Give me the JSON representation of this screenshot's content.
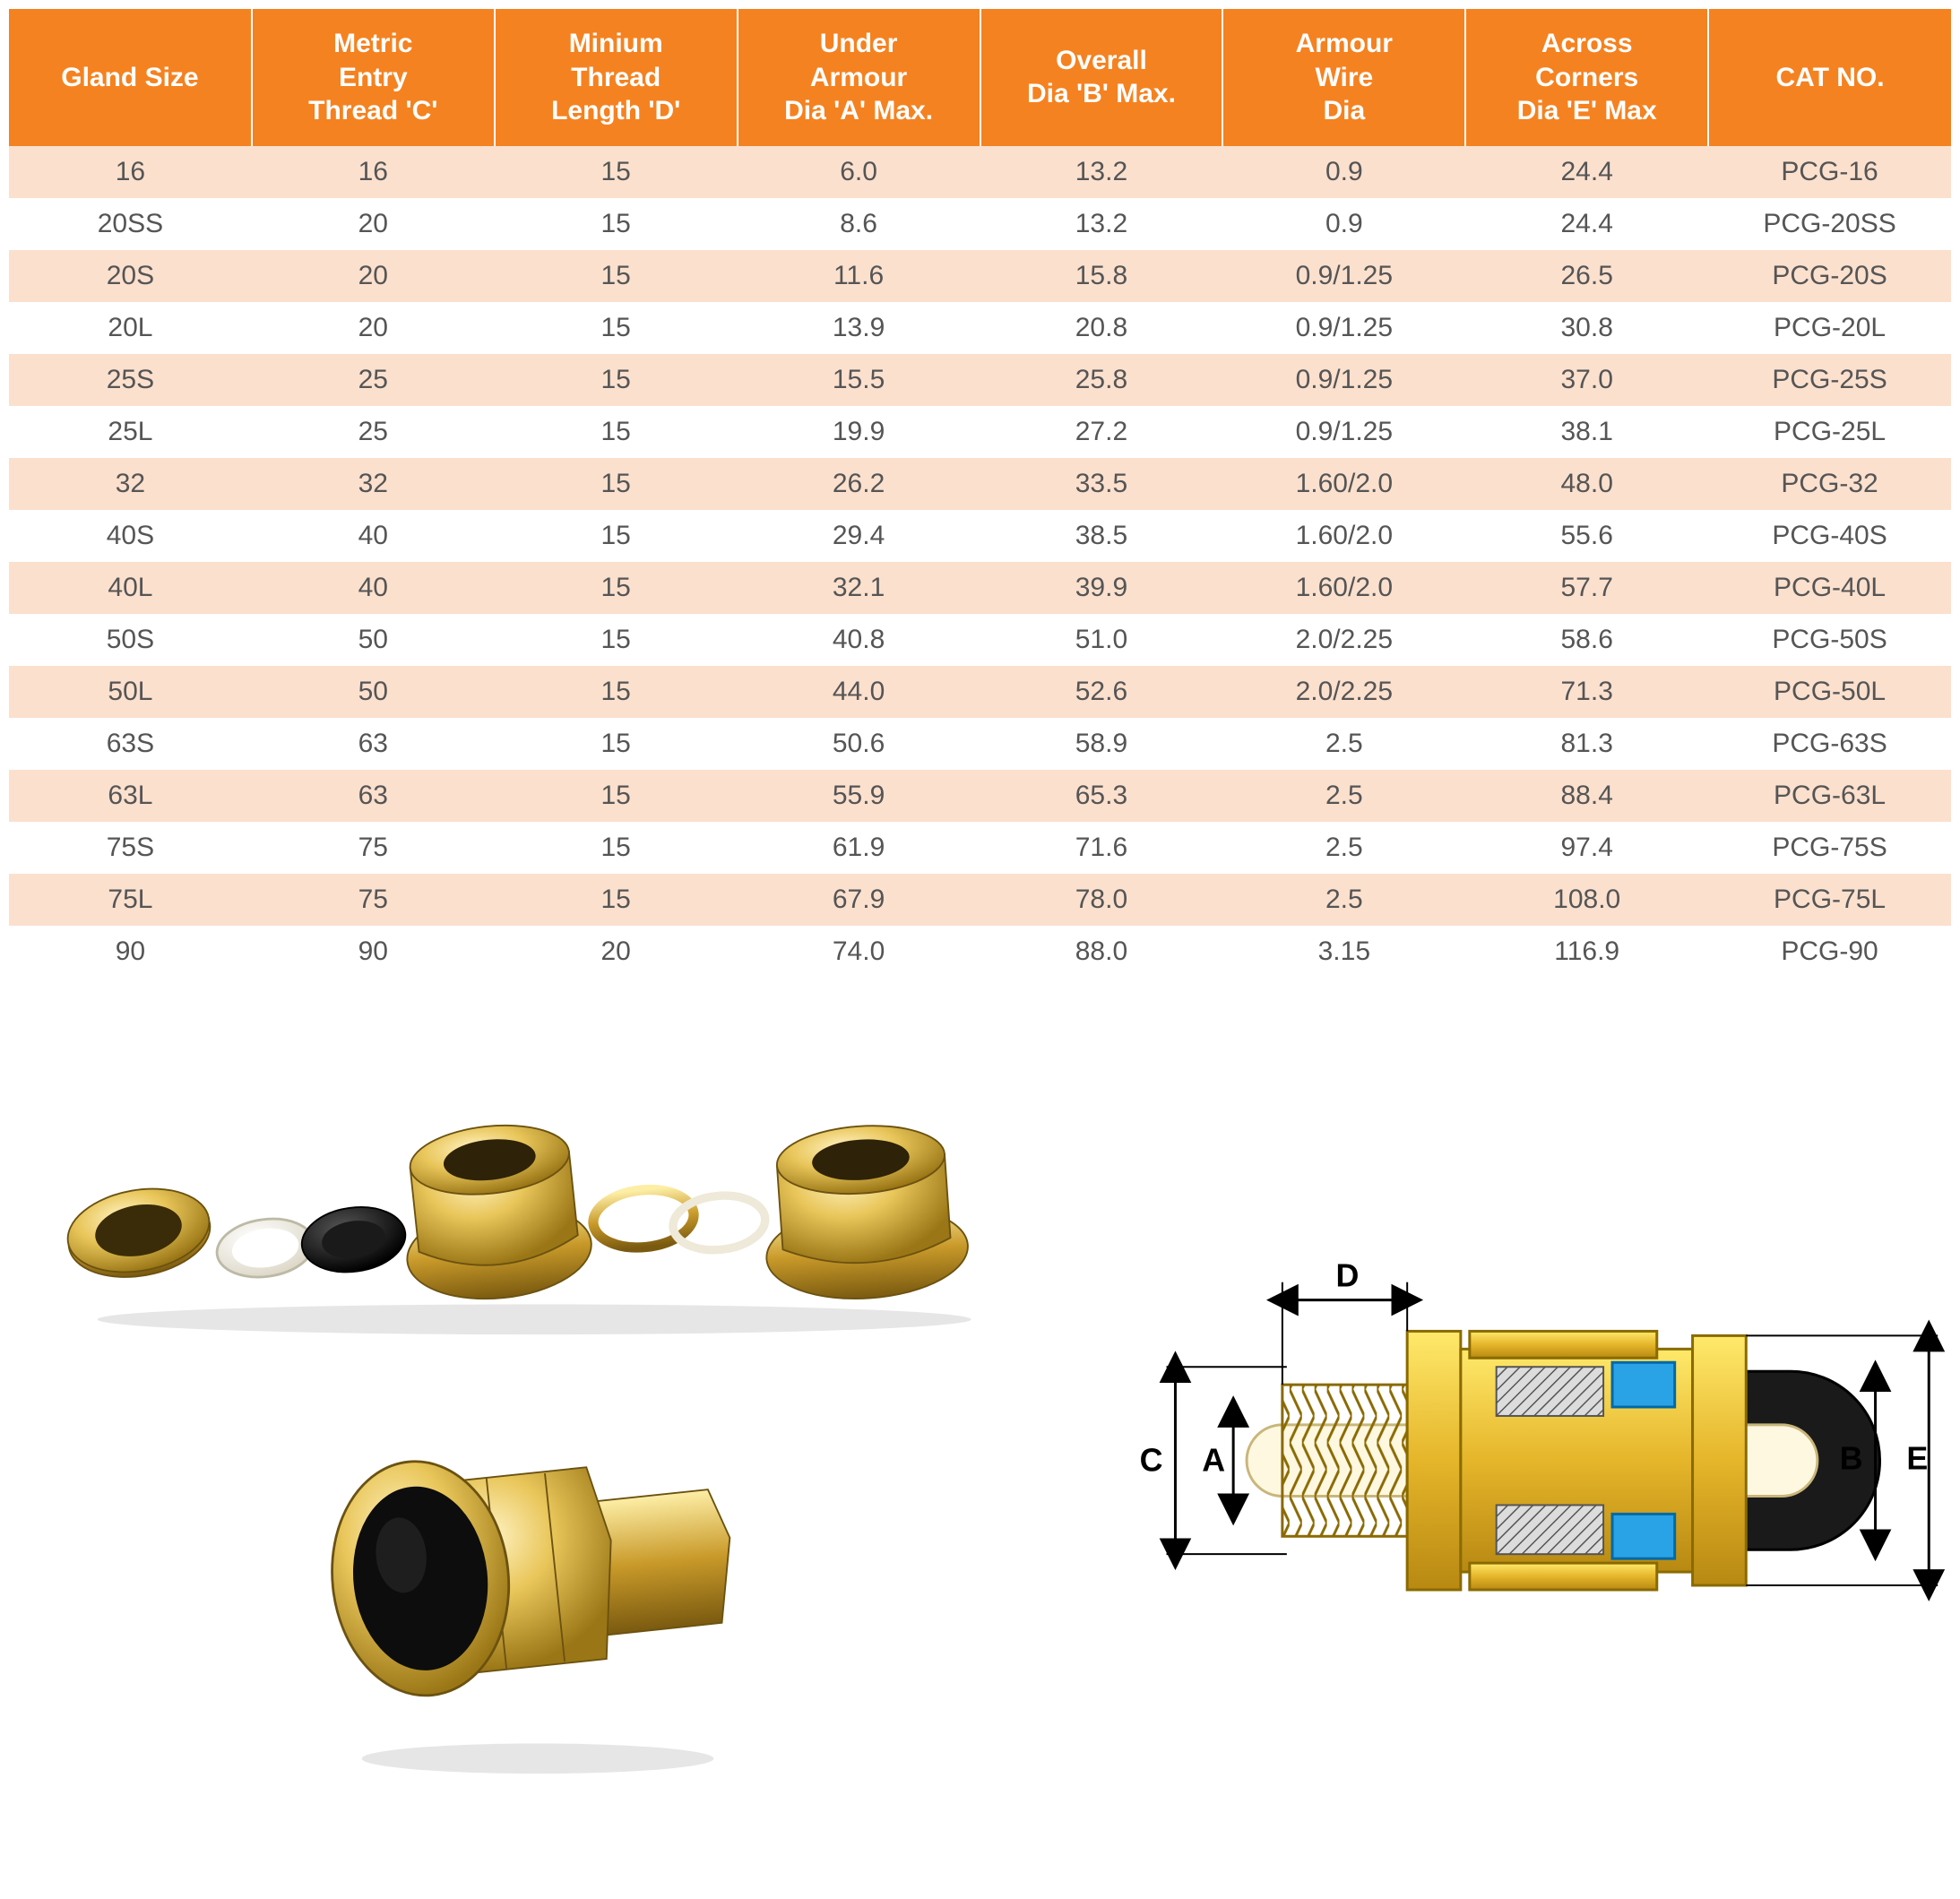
{
  "table": {
    "header_bg": "#f58220",
    "header_fg": "#ffffff",
    "row_odd_bg": "#fbe0ce",
    "row_even_bg": "#ffffff",
    "cell_fg": "#555555",
    "header_fontsize": 30,
    "cell_fontsize": 30,
    "columns": [
      "Gland Size",
      "Metric\nEntry\nThread 'C'",
      "Minium\nThread\nLength 'D'",
      "Under\nArmour\nDia 'A' Max.",
      "Overall\nDia 'B' Max.",
      "Armour\nWire\nDia",
      "Across\nCorners\nDia 'E' Max",
      "CAT NO."
    ],
    "rows": [
      [
        "16",
        "16",
        "15",
        "6.0",
        "13.2",
        "0.9",
        "24.4",
        "PCG-16"
      ],
      [
        "20SS",
        "20",
        "15",
        "8.6",
        "13.2",
        "0.9",
        "24.4",
        "PCG-20SS"
      ],
      [
        "20S",
        "20",
        "15",
        "11.6",
        "15.8",
        "0.9/1.25",
        "26.5",
        "PCG-20S"
      ],
      [
        "20L",
        "20",
        "15",
        "13.9",
        "20.8",
        "0.9/1.25",
        "30.8",
        "PCG-20L"
      ],
      [
        "25S",
        "25",
        "15",
        "15.5",
        "25.8",
        "0.9/1.25",
        "37.0",
        "PCG-25S"
      ],
      [
        "25L",
        "25",
        "15",
        "19.9",
        "27.2",
        "0.9/1.25",
        "38.1",
        "PCG-25L"
      ],
      [
        "32",
        "32",
        "15",
        "26.2",
        "33.5",
        "1.60/2.0",
        "48.0",
        "PCG-32"
      ],
      [
        "40S",
        "40",
        "15",
        "29.4",
        "38.5",
        "1.60/2.0",
        "55.6",
        "PCG-40S"
      ],
      [
        "40L",
        "40",
        "15",
        "32.1",
        "39.9",
        "1.60/2.0",
        "57.7",
        "PCG-40L"
      ],
      [
        "50S",
        "50",
        "15",
        "40.8",
        "51.0",
        "2.0/2.25",
        "58.6",
        "PCG-50S"
      ],
      [
        "50L",
        "50",
        "15",
        "44.0",
        "52.6",
        "2.0/2.25",
        "71.3",
        "PCG-50L"
      ],
      [
        "63S",
        "63",
        "15",
        "50.6",
        "58.9",
        "2.5",
        "81.3",
        "PCG-63S"
      ],
      [
        "63L",
        "63",
        "15",
        "55.9",
        "65.3",
        "2.5",
        "88.4",
        "PCG-63L"
      ],
      [
        "75S",
        "75",
        "15",
        "61.9",
        "71.6",
        "2.5",
        "97.4",
        "PCG-75S"
      ],
      [
        "75L",
        "75",
        "15",
        "67.9",
        "78.0",
        "2.5",
        "108.0",
        "PCG-75L"
      ],
      [
        "90",
        "90",
        "20",
        "74.0",
        "88.0",
        "3.15",
        "116.9",
        "PCG-90"
      ]
    ]
  },
  "diagram": {
    "labels": {
      "A": "A",
      "B": "B",
      "C": "C",
      "D": "D",
      "E": "E"
    },
    "label_fontsize": 36,
    "label_color": "#000000",
    "brass_fill_light": "#fce08a",
    "brass_fill_dark": "#d6a017",
    "brass_stroke": "#8a6a00",
    "cable_outer": "#1a1a1a",
    "cable_inner": "#ffffff",
    "seal_blue": "#2aa3e6",
    "armour_hatch": "#555555",
    "arrow_color": "#000000"
  },
  "photo": {
    "description": "Exploded brass cable gland components and assembled gland",
    "brass_light": "#f4dd8a",
    "brass_mid": "#d6a93a",
    "brass_dark": "#8a6a1a",
    "black_ring": "#1a1a1a",
    "white_ring": "#f6f6f0",
    "shadow": "#cfcfcf"
  }
}
